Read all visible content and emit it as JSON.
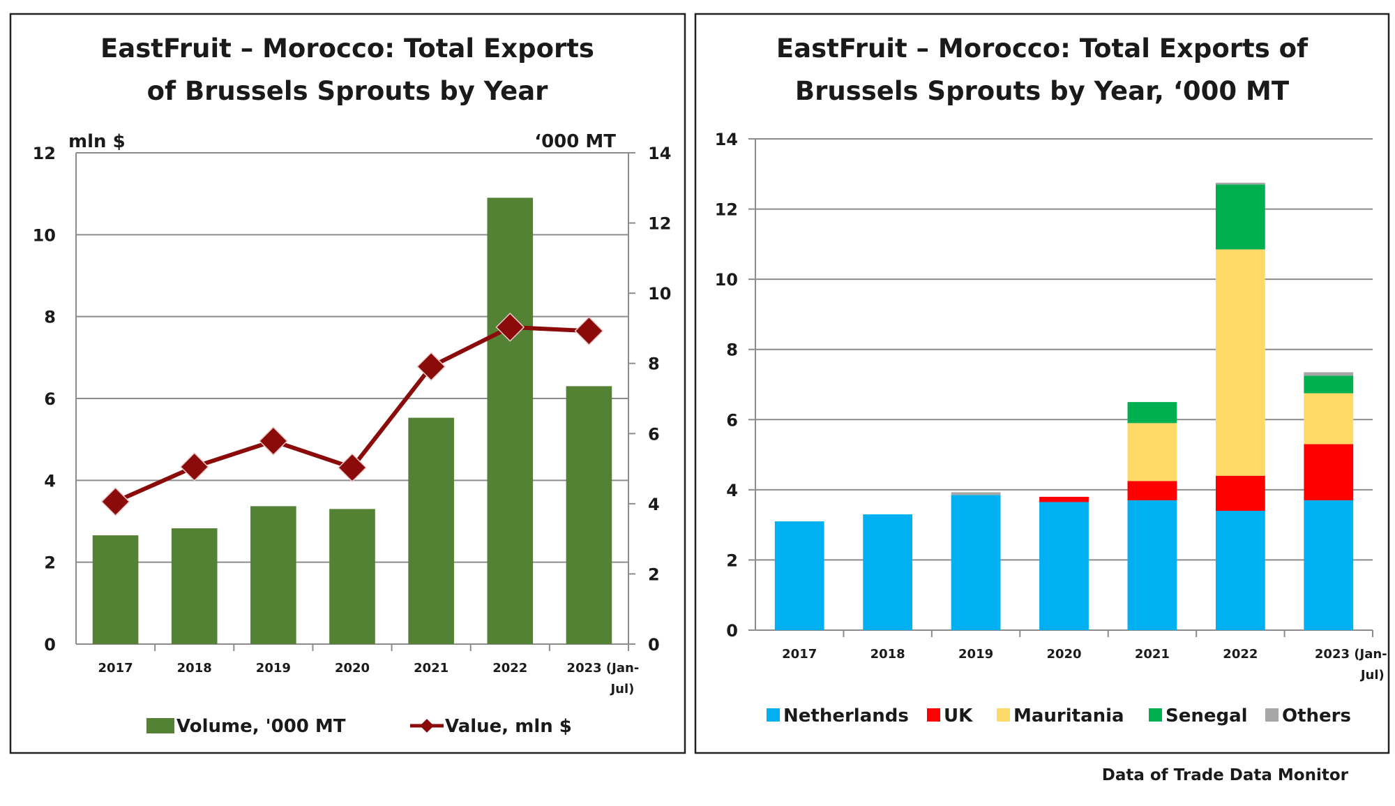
{
  "chart_data": [
    {
      "type": "bar+line",
      "title_lines": [
        "EastFruit – Morocco: Total Exports",
        "of Brussels Sprouts by Year"
      ],
      "categories": [
        "2017",
        "2018",
        "2019",
        "2020",
        "2021",
        "2022",
        "2023 (Jan-Jul)"
      ],
      "category_labels": [
        [
          "2017"
        ],
        [
          "2018"
        ],
        [
          "2019"
        ],
        [
          "2020"
        ],
        [
          "2021"
        ],
        [
          "2022"
        ],
        [
          "2023  (Jan-",
          "Jul)"
        ]
      ],
      "left_axis": {
        "label": "mln $",
        "ylim": [
          0,
          12
        ],
        "ticks": [
          0,
          2,
          4,
          6,
          8,
          10,
          12
        ]
      },
      "right_axis": {
        "label": "‘000 MT",
        "ylim": [
          0,
          14
        ],
        "ticks": [
          0,
          2,
          4,
          6,
          8,
          10,
          12,
          14
        ]
      },
      "grid": true,
      "legend_position": "bottom",
      "series": [
        {
          "name": "Volume, '000 MT",
          "type": "bar",
          "axis": "right",
          "color": "#548235",
          "values": [
            3.1,
            3.3,
            3.93,
            3.85,
            6.45,
            12.72,
            7.35
          ]
        },
        {
          "name": "Value, mln $",
          "type": "line",
          "axis": "left",
          "color": "#8B0A0A",
          "values": [
            3.48,
            4.33,
            4.96,
            4.31,
            6.78,
            7.74,
            7.65
          ]
        }
      ]
    },
    {
      "type": "stacked-bar",
      "title_lines": [
        "EastFruit – Morocco: Total Exports of",
        "Brussels Sprouts by Year, ‘000 MT"
      ],
      "categories": [
        "2017",
        "2018",
        "2019",
        "2020",
        "2021",
        "2022",
        "2023 (Jan-Jul)"
      ],
      "category_labels": [
        [
          "2017"
        ],
        [
          "2018"
        ],
        [
          "2019"
        ],
        [
          "2020"
        ],
        [
          "2021"
        ],
        [
          "2022"
        ],
        [
          "2023    (Jan-",
          "Jul)"
        ]
      ],
      "ylim": [
        0,
        14
      ],
      "ticks": [
        0,
        2,
        4,
        6,
        8,
        10,
        12,
        14
      ],
      "grid": true,
      "legend_position": "bottom",
      "series": [
        {
          "name": "Netherlands",
          "color": "#00B0F0",
          "values": [
            3.1,
            3.3,
            3.85,
            3.65,
            3.7,
            3.4,
            3.7
          ]
        },
        {
          "name": "UK",
          "color": "#FF0000",
          "values": [
            0,
            0,
            0,
            0.15,
            0.55,
            1.0,
            1.6
          ]
        },
        {
          "name": "Mauritania",
          "color": "#FFD966",
          "values": [
            0,
            0,
            0,
            0,
            1.65,
            6.45,
            1.45
          ]
        },
        {
          "name": "Senegal",
          "color": "#00B050",
          "values": [
            0,
            0,
            0,
            0,
            0.6,
            1.85,
            0.5
          ]
        },
        {
          "name": "Others",
          "color": "#A6A6A6",
          "values": [
            0,
            0,
            0.08,
            0,
            0,
            0.05,
            0.1
          ]
        }
      ]
    }
  ],
  "footer": "Data of Trade Data Monitor"
}
